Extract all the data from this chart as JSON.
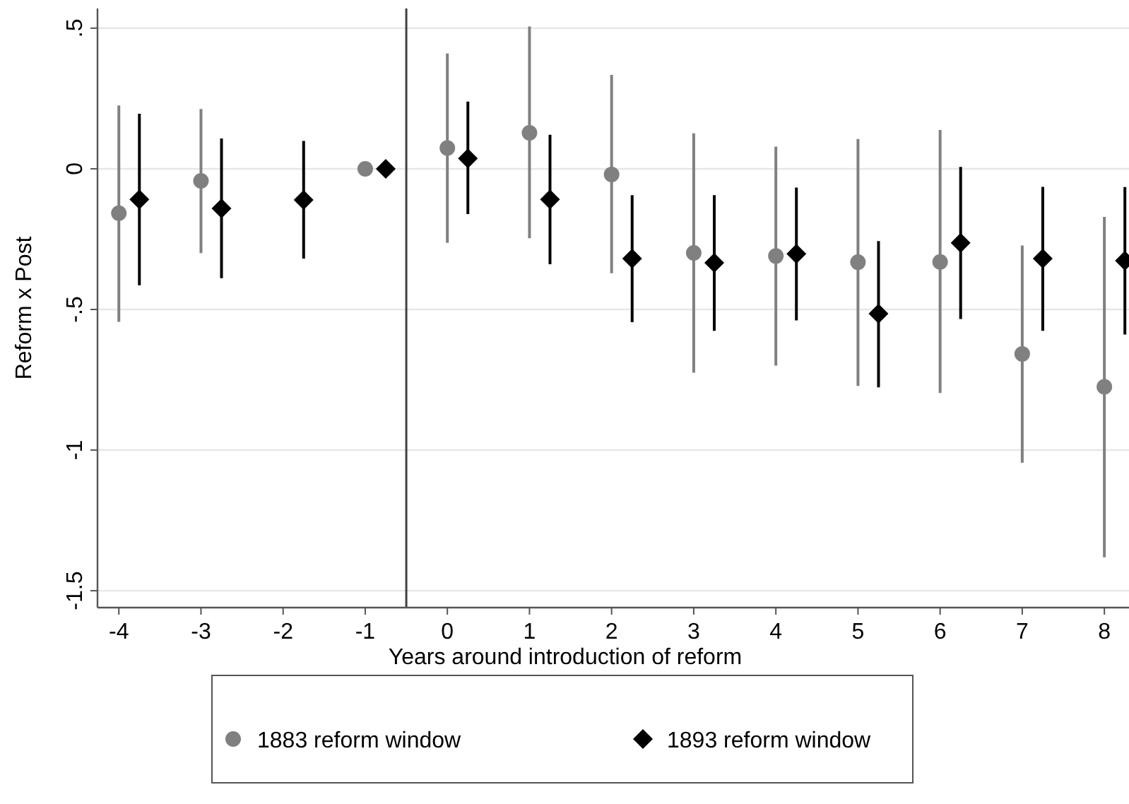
{
  "chart_data": {
    "type": "scatter",
    "xlabel": "Years around introduction of reform",
    "ylabel": "Reform x Post",
    "xlim": [
      -4.26,
      8.3
    ],
    "xticks": [
      -4,
      -3,
      -2,
      -1,
      0,
      1,
      2,
      3,
      4,
      5,
      6,
      7,
      8
    ],
    "ylim": [
      -1.56,
      0.57
    ],
    "yticks": [
      {
        "value": 0.5,
        "label": ".5"
      },
      0,
      {
        "value": -0.5,
        "label": "-.5"
      },
      -1,
      {
        "value": -1.5,
        "label": "-1.5"
      }
    ],
    "grid": "y",
    "legend": "bottom",
    "ref_lines": [
      {
        "axis": "x",
        "value": -0.5,
        "color": "#404040"
      }
    ],
    "series": [
      {
        "name": "1883 reform window",
        "color": "#808080",
        "marker": "circle",
        "x": [
          -4,
          -3,
          -1,
          0,
          1,
          2,
          3,
          4,
          5,
          6,
          7,
          8
        ],
        "values": [
          -0.158,
          -0.043,
          0,
          0.074,
          0.128,
          -0.02,
          -0.299,
          -0.31,
          -0.332,
          -0.331,
          -0.658,
          -0.775
        ],
        "errors": [
          [
            -0.544,
            0.225
          ],
          [
            -0.3,
            0.213
          ],
          null,
          [
            -0.263,
            0.41
          ],
          [
            -0.247,
            0.506
          ],
          [
            -0.371,
            0.334
          ],
          [
            -0.725,
            0.126
          ],
          [
            -0.7,
            0.079
          ],
          [
            -0.772,
            0.106
          ],
          [
            -0.797,
            0.138
          ],
          [
            -1.045,
            -0.273
          ],
          [
            -1.381,
            -0.171
          ]
        ]
      },
      {
        "name": "1893 reform window",
        "color": "#000000",
        "marker": "diamond",
        "x": [
          -3.75,
          -2.75,
          -1.75,
          -0.75,
          0.25,
          1.25,
          2.25,
          3.25,
          4.25,
          5.25,
          6.25,
          7.25,
          8.25
        ],
        "values": [
          -0.109,
          -0.141,
          -0.111,
          0,
          0.037,
          -0.109,
          -0.319,
          -0.334,
          -0.302,
          -0.515,
          -0.263,
          -0.319,
          -0.327
        ],
        "errors": [
          [
            -0.414,
            0.196
          ],
          [
            -0.389,
            0.108
          ],
          [
            -0.319,
            0.099
          ],
          null,
          [
            -0.161,
            0.239
          ],
          [
            -0.339,
            0.121
          ],
          [
            -0.545,
            -0.094
          ],
          [
            -0.576,
            -0.094
          ],
          [
            -0.539,
            -0.067
          ],
          [
            -0.777,
            -0.257
          ],
          [
            -0.534,
            0.007
          ],
          [
            -0.576,
            -0.064
          ],
          [
            -0.589,
            -0.065
          ]
        ]
      }
    ]
  }
}
